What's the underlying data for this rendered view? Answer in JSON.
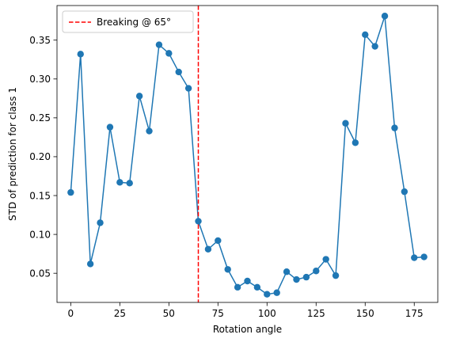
{
  "chart_data": {
    "type": "line",
    "title": "",
    "xlabel": "Rotation angle",
    "ylabel": "STD of prediction for class 1",
    "xlim": [
      -7,
      187
    ],
    "ylim": [
      0.0125,
      0.3945
    ],
    "xticks": [
      0,
      25,
      50,
      75,
      100,
      125,
      150,
      175
    ],
    "yticks": [
      0.05,
      0.1,
      0.15,
      0.2,
      0.25,
      0.3,
      0.35
    ],
    "grid": false,
    "legend_position": "top-left",
    "series": [
      {
        "color": "#1f77b4",
        "marker": "circle",
        "x": [
          0,
          5,
          10,
          15,
          20,
          25,
          30,
          35,
          40,
          45,
          50,
          55,
          60,
          65,
          70,
          75,
          80,
          85,
          90,
          95,
          100,
          105,
          110,
          115,
          120,
          125,
          130,
          135,
          140,
          145,
          150,
          155,
          160,
          165,
          170,
          175,
          180
        ],
        "y": [
          0.154,
          0.332,
          0.062,
          0.115,
          0.238,
          0.167,
          0.166,
          0.278,
          0.233,
          0.344,
          0.333,
          0.309,
          0.288,
          0.117,
          0.081,
          0.092,
          0.055,
          0.032,
          0.04,
          0.032,
          0.023,
          0.025,
          0.052,
          0.042,
          0.045,
          0.053,
          0.068,
          0.047,
          0.243,
          0.218,
          0.357,
          0.342,
          0.381,
          0.237,
          0.155,
          0.07,
          0.071
        ]
      }
    ],
    "reference_lines": [
      {
        "orientation": "vertical",
        "x": 65,
        "color": "#ff0000",
        "style": "dashed",
        "label": "Breaking @ 65°"
      }
    ],
    "legend": [
      {
        "label": "Breaking @ 65°",
        "color": "#ff0000",
        "style": "dashed"
      }
    ]
  }
}
